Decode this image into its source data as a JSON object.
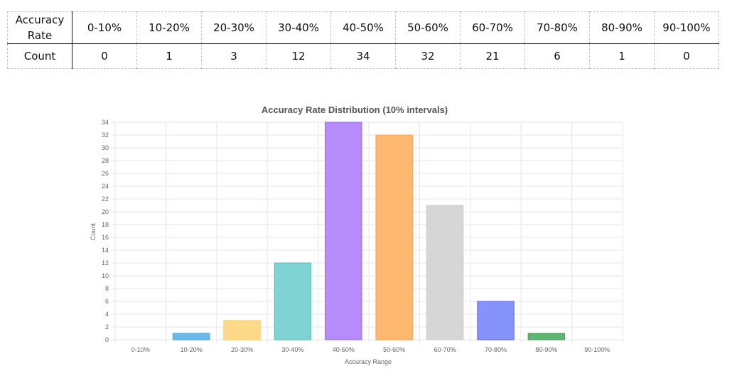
{
  "table": {
    "header_label": "Accuracy Rate",
    "count_label": "Count",
    "bins": [
      "0-10%",
      "10-20%",
      "20-30%",
      "30-40%",
      "40-50%",
      "50-60%",
      "60-70%",
      "70-80%",
      "80-90%",
      "90-100%"
    ],
    "counts": [
      "0",
      "1",
      "3",
      "12",
      "34",
      "32",
      "21",
      "6",
      "1",
      "0"
    ]
  },
  "chart_data": {
    "type": "bar",
    "title": "Accuracy Rate Distribution (10% intervals)",
    "xlabel": "Accuracy Range",
    "ylabel": "Count",
    "categories": [
      "0-10%",
      "10-20%",
      "20-30%",
      "30-40%",
      "40-50%",
      "50-60%",
      "60-70%",
      "70-80%",
      "80-90%",
      "90-100%"
    ],
    "values": [
      0,
      1,
      3,
      12,
      34,
      32,
      21,
      6,
      1,
      0
    ],
    "ylim": [
      0,
      34
    ],
    "yticks": [
      0,
      2,
      4,
      6,
      8,
      10,
      12,
      14,
      16,
      18,
      20,
      22,
      24,
      26,
      28,
      30,
      32,
      34
    ],
    "grid": true,
    "legend": "none",
    "colors": [
      {
        "fill": "#ff6384",
        "stroke": "#ff6384"
      },
      {
        "fill": "#6fb8ea",
        "stroke": "#36a2eb"
      },
      {
        "fill": "#ffd98a",
        "stroke": "#ffcd56"
      },
      {
        "fill": "#7fd3d3",
        "stroke": "#4bc0c0"
      },
      {
        "fill": "#b58cfa",
        "stroke": "#9966ff"
      },
      {
        "fill": "#ffb870",
        "stroke": "#ff9f40"
      },
      {
        "fill": "#d6d6d6",
        "stroke": "#c9cbcf"
      },
      {
        "fill": "#8693fb",
        "stroke": "#5864fb"
      },
      {
        "fill": "#61b572",
        "stroke": "#41a356"
      },
      {
        "fill": "#f5a3b6",
        "stroke": "#f06e8e"
      }
    ]
  }
}
